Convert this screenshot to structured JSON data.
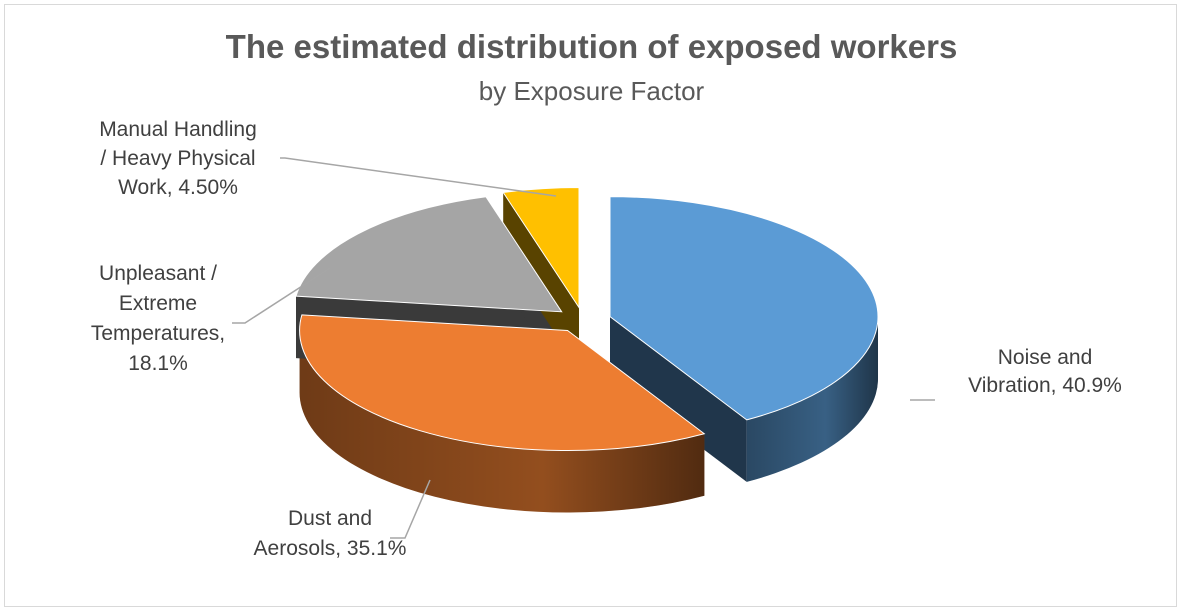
{
  "chart_data": {
    "type": "pie",
    "title": "The estimated distribution of exposed workers",
    "subtitle": "by Exposure Factor",
    "slices": [
      {
        "name": "Noise and Vibration",
        "value": 40.9,
        "label_lines": [
          "Noise and",
          "Vibration, 40.9%"
        ],
        "color": "#5b9bd5"
      },
      {
        "name": "Dust and Aerosols",
        "value": 35.1,
        "label_lines": [
          "Dust and",
          "Aerosols, 35.1%"
        ],
        "color": "#ed7d31"
      },
      {
        "name": "Unpleasant / Extreme Temperatures",
        "value": 18.1,
        "label_lines": [
          "Unpleasant /",
          "Extreme",
          "Temperatures,",
          "18.1%"
        ],
        "color": "#a5a5a5"
      },
      {
        "name": "Manual Handling / Heavy Physical Work",
        "value": 4.5,
        "label_lines": [
          "Manual Handling",
          "/ Heavy Physical",
          "Work, 4.50%"
        ],
        "color": "#ffc000"
      }
    ],
    "exploded": true,
    "style": "3d"
  }
}
